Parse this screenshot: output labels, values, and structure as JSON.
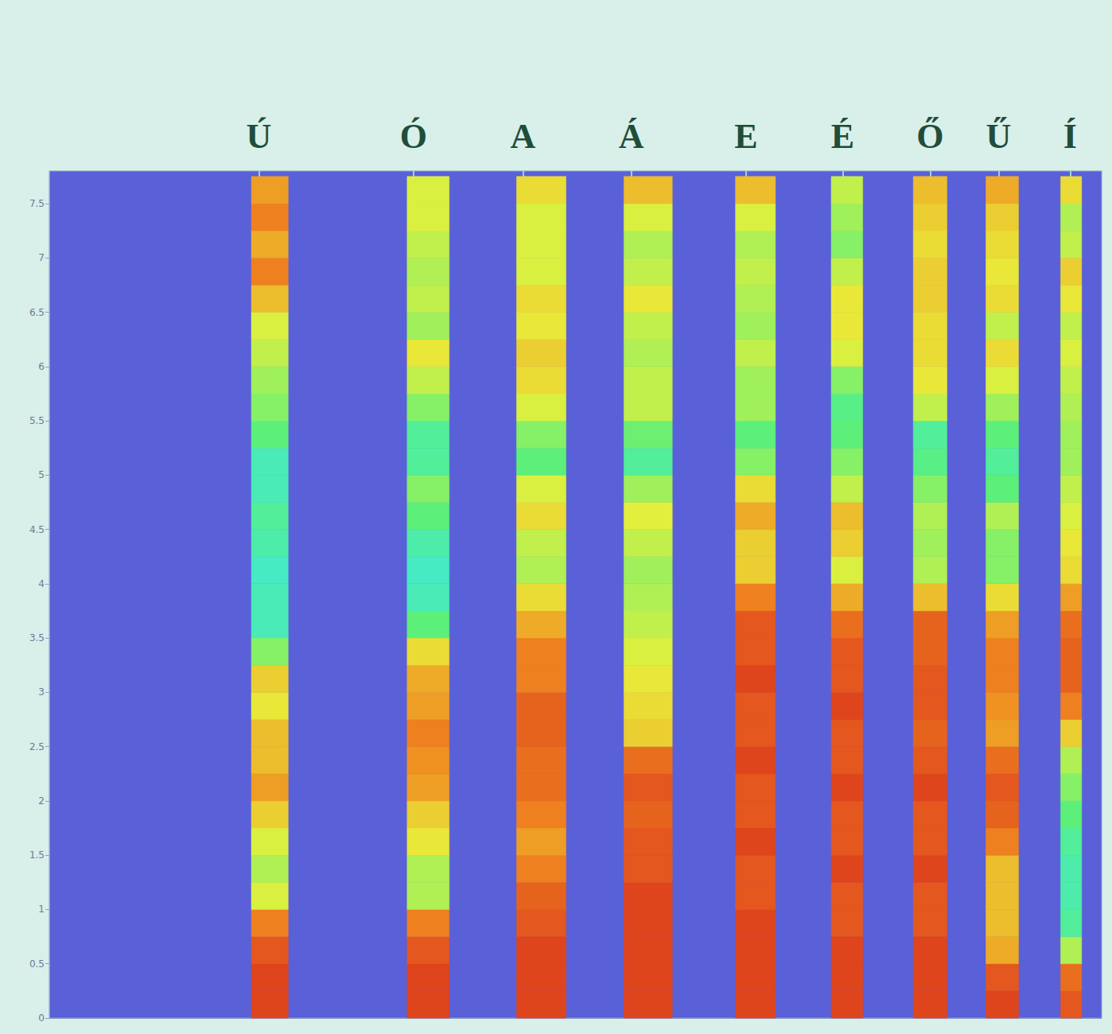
{
  "chart_data": {
    "type": "spectrogram",
    "xlim": [
      0,
      100
    ],
    "ylim": [
      0,
      7.8
    ],
    "yticks": [
      0,
      0.5,
      1,
      1.5,
      2,
      2.5,
      3,
      3.5,
      4,
      4.5,
      5,
      5.5,
      6,
      6.5,
      7,
      7.5
    ],
    "tick_labels": "y",
    "grid": false,
    "zlim": [
      0,
      100
    ],
    "freq_bins": [
      0,
      0.25,
      0.5,
      0.75,
      1,
      1.25,
      1.5,
      1.75,
      2,
      2.25,
      2.5,
      2.75,
      3,
      3.25,
      3.5,
      3.75,
      4,
      4.25,
      4.5,
      4.75,
      5,
      5.25,
      5.5,
      5.75,
      6,
      6.25,
      6.5,
      6.75,
      7,
      7.25,
      7.5,
      7.75
    ],
    "vowels": [
      {
        "label": "Ú",
        "label_x": 19.9,
        "start": 19.2,
        "end": 22.7,
        "intensity": [
          95,
          95,
          92,
          85,
          65,
          60,
          65,
          72,
          80,
          75,
          75,
          68,
          72,
          55,
          40,
          40,
          38,
          42,
          45,
          40,
          40,
          50,
          55,
          58,
          62,
          65,
          75,
          85,
          78,
          85,
          80
        ]
      },
      {
        "label": "Ó",
        "label_x": 34.6,
        "start": 34.0,
        "end": 38.0,
        "intensity": [
          95,
          95,
          92,
          85,
          60,
          60,
          68,
          72,
          80,
          82,
          85,
          80,
          78,
          70,
          50,
          40,
          38,
          42,
          50,
          55,
          45,
          45,
          55,
          62,
          68,
          58,
          62,
          60,
          62,
          65,
          65
        ]
      },
      {
        "label": "A",
        "label_x": 45.0,
        "start": 44.4,
        "end": 49.1,
        "intensity": [
          95,
          95,
          95,
          92,
          90,
          85,
          80,
          85,
          88,
          88,
          90,
          90,
          85,
          85,
          78,
          70,
          60,
          62,
          70,
          65,
          50,
          55,
          65,
          70,
          72,
          68,
          70,
          65,
          65,
          65,
          70
        ]
      },
      {
        "label": "Á",
        "label_x": 55.3,
        "start": 54.6,
        "end": 59.2,
        "intensity": [
          95,
          95,
          95,
          95,
          95,
          92,
          92,
          90,
          92,
          88,
          72,
          70,
          68,
          65,
          62,
          60,
          58,
          62,
          66,
          58,
          45,
          52,
          62,
          62,
          60,
          62,
          68,
          62,
          60,
          65,
          75
        ]
      },
      {
        "label": "E",
        "label_x": 66.2,
        "start": 65.2,
        "end": 69.0,
        "intensity": [
          95,
          95,
          95,
          95,
          92,
          92,
          95,
          92,
          92,
          95,
          92,
          92,
          95,
          92,
          92,
          85,
          72,
          72,
          78,
          70,
          55,
          50,
          58,
          58,
          62,
          58,
          60,
          62,
          60,
          65,
          75
        ]
      },
      {
        "label": "É",
        "label_x": 75.4,
        "start": 74.3,
        "end": 77.3,
        "intensity": [
          95,
          95,
          95,
          92,
          92,
          95,
          92,
          92,
          95,
          92,
          92,
          95,
          92,
          92,
          88,
          78,
          65,
          72,
          75,
          62,
          55,
          50,
          48,
          55,
          65,
          68,
          68,
          62,
          55,
          58,
          62
        ]
      },
      {
        "label": "Ő",
        "label_x": 83.7,
        "start": 82.1,
        "end": 85.3,
        "intensity": [
          95,
          95,
          95,
          92,
          92,
          95,
          92,
          92,
          95,
          92,
          90,
          92,
          92,
          90,
          90,
          75,
          60,
          58,
          60,
          55,
          48,
          45,
          62,
          68,
          70,
          70,
          72,
          72,
          70,
          72,
          75
        ]
      },
      {
        "label": "Ű",
        "label_x": 90.2,
        "start": 89.0,
        "end": 92.1,
        "intensity": [
          95,
          92,
          78,
          75,
          75,
          75,
          85,
          90,
          92,
          88,
          80,
          82,
          85,
          85,
          80,
          70,
          55,
          55,
          60,
          50,
          45,
          50,
          58,
          65,
          70,
          62,
          70,
          68,
          70,
          72,
          78
        ]
      },
      {
        "label": "Í",
        "label_x": 97.0,
        "start": 96.1,
        "end": 98.1,
        "intensity": [
          92,
          88,
          60,
          45,
          42,
          42,
          45,
          50,
          55,
          60,
          72,
          85,
          90,
          90,
          88,
          80,
          70,
          68,
          65,
          62,
          58,
          58,
          60,
          62,
          65,
          62,
          68,
          72,
          62,
          60,
          70
        ]
      }
    ]
  }
}
